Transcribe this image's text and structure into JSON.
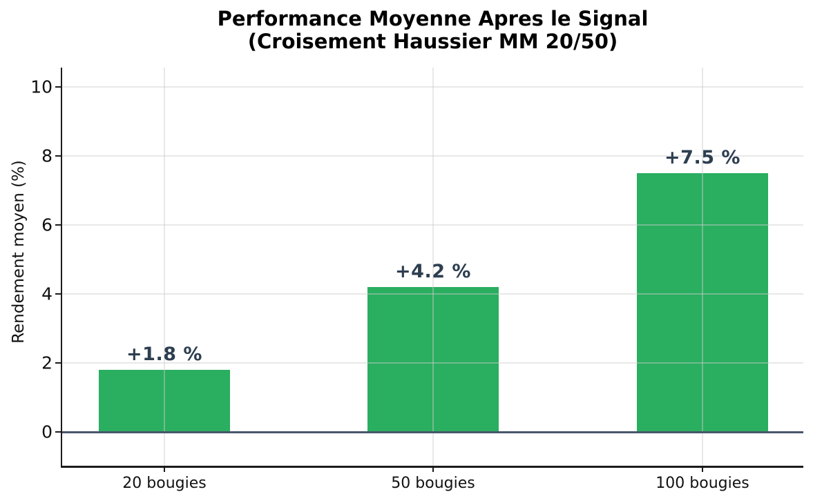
{
  "chart_data": {
    "type": "bar",
    "title_lines": [
      "Performance Moyenne Apres le Signal",
      "(Croisement Haussier MM 20/50)"
    ],
    "ylabel": "Rendement moyen (%)",
    "xlabel": "",
    "categories": [
      "20 bougies",
      "50 bougies",
      "100 bougies"
    ],
    "values": [
      1.8,
      4.2,
      7.5
    ],
    "bar_labels": [
      "+1.8 %",
      "+4.2 %",
      "+7.5 %"
    ],
    "yticks": [
      0,
      2,
      4,
      6,
      8,
      10
    ],
    "ylim": [
      -0.98,
      10.56
    ],
    "grid": true,
    "legend": "none",
    "colors": {
      "background": "#ffffff",
      "bar": "#2aae60",
      "bar_label": "#2d3e50",
      "zero_line": "#47566a",
      "spine": "#1a1a1a",
      "grid": "rgba(204,204,204,0.45)",
      "text": "#111111",
      "title": "#000000"
    }
  }
}
